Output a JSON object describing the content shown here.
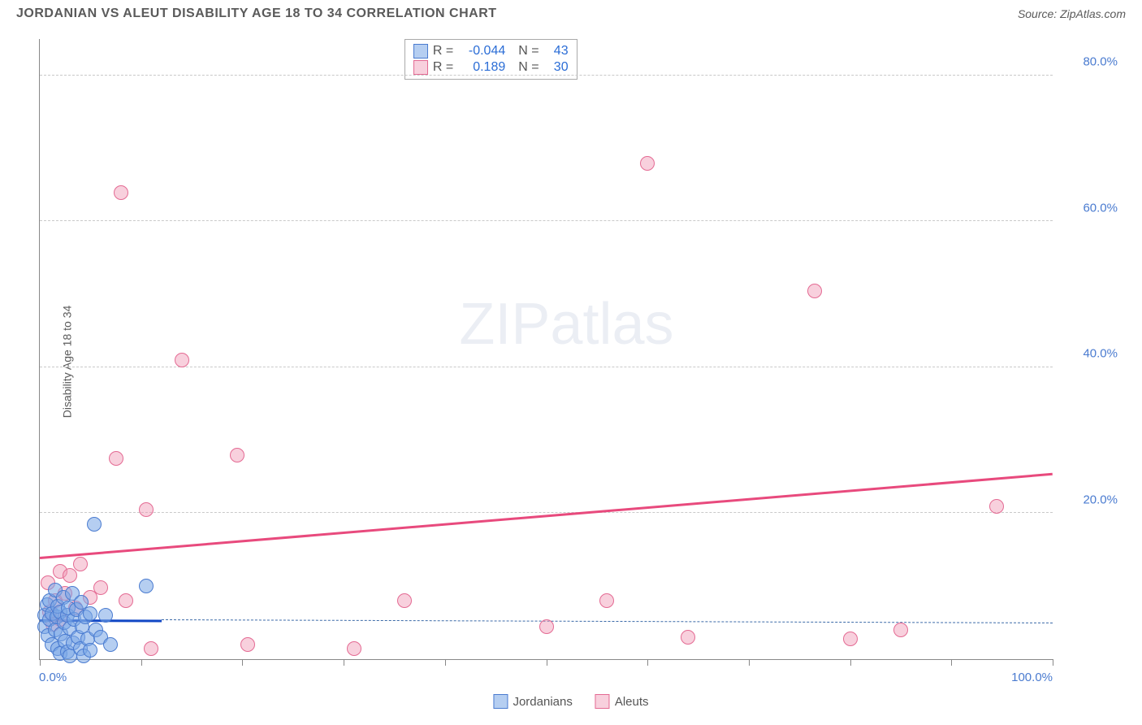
{
  "header": {
    "title": "JORDANIAN VS ALEUT DISABILITY AGE 18 TO 34 CORRELATION CHART",
    "source": "Source: ZipAtlas.com"
  },
  "chart": {
    "type": "scatter",
    "ylabel": "Disability Age 18 to 34",
    "watermark": "ZIPatlas",
    "background_color": "#ffffff",
    "grid_color": "#c9c9c9",
    "axis_color": "#888888",
    "text_color": "#5a5a5a",
    "value_color": "#4a7bd0",
    "xlim": [
      0,
      100
    ],
    "ylim": [
      0,
      85
    ],
    "x_ticks": [
      0,
      10,
      20,
      30,
      40,
      50,
      60,
      70,
      80,
      90,
      100
    ],
    "x_tick_labels": {
      "0": "0.0%",
      "100": "100.0%"
    },
    "y_gridlines": [
      20,
      40,
      60,
      80
    ],
    "y_tick_labels": {
      "20": "20.0%",
      "40": "40.0%",
      "60": "60.0%",
      "80": "80.0%"
    },
    "series": [
      {
        "name": "Jordanians",
        "fill_color": "rgba(120,165,230,0.55)",
        "stroke_color": "#4a7bd0",
        "marker_radius": 9,
        "stats": {
          "R": "-0.044",
          "N": "43"
        },
        "trend": {
          "y_at_x0": 5.5,
          "y_at_x100": 5.0,
          "color": "#1147c5",
          "width": 3,
          "solid_until_x": 12,
          "dash_color": "#3b6aa8"
        },
        "points": [
          {
            "x": 0.5,
            "y": 6
          },
          {
            "x": 0.5,
            "y": 4.5
          },
          {
            "x": 0.7,
            "y": 7.5
          },
          {
            "x": 0.8,
            "y": 3.2
          },
          {
            "x": 1.0,
            "y": 5.5
          },
          {
            "x": 1.0,
            "y": 8.0
          },
          {
            "x": 1.2,
            "y": 2.0
          },
          {
            "x": 1.2,
            "y": 6.2
          },
          {
            "x": 1.5,
            "y": 9.5
          },
          {
            "x": 1.5,
            "y": 4.0
          },
          {
            "x": 1.7,
            "y": 5.8
          },
          {
            "x": 1.8,
            "y": 7.2
          },
          {
            "x": 1.8,
            "y": 1.4
          },
          {
            "x": 2.0,
            "y": 0.8
          },
          {
            "x": 2.0,
            "y": 6.5
          },
          {
            "x": 2.1,
            "y": 3.5
          },
          {
            "x": 2.3,
            "y": 8.5
          },
          {
            "x": 2.4,
            "y": 5.0
          },
          {
            "x": 2.5,
            "y": 2.5
          },
          {
            "x": 2.7,
            "y": 6.0
          },
          {
            "x": 2.7,
            "y": 1.0
          },
          {
            "x": 2.8,
            "y": 7.0
          },
          {
            "x": 3.0,
            "y": 4.2
          },
          {
            "x": 3.0,
            "y": 0.5
          },
          {
            "x": 3.2,
            "y": 9.0
          },
          {
            "x": 3.3,
            "y": 2.2
          },
          {
            "x": 3.4,
            "y": 5.5
          },
          {
            "x": 3.6,
            "y": 6.8
          },
          {
            "x": 3.8,
            "y": 3.0
          },
          {
            "x": 4.0,
            "y": 1.5
          },
          {
            "x": 4.1,
            "y": 7.8
          },
          {
            "x": 4.2,
            "y": 4.5
          },
          {
            "x": 4.3,
            "y": 0.4
          },
          {
            "x": 4.5,
            "y": 5.8
          },
          {
            "x": 4.7,
            "y": 2.8
          },
          {
            "x": 5.0,
            "y": 6.2
          },
          {
            "x": 5.0,
            "y": 1.2
          },
          {
            "x": 5.4,
            "y": 18.5
          },
          {
            "x": 5.5,
            "y": 4.0
          },
          {
            "x": 6.0,
            "y": 3.0
          },
          {
            "x": 6.5,
            "y": 6.0
          },
          {
            "x": 7.0,
            "y": 2.0
          },
          {
            "x": 10.5,
            "y": 10.0
          }
        ]
      },
      {
        "name": "Aleuts",
        "fill_color": "rgba(240,150,180,0.45)",
        "stroke_color": "#e46a93",
        "marker_radius": 9,
        "stats": {
          "R": "0.189",
          "N": "30"
        },
        "trend": {
          "y_at_x0": 14.0,
          "y_at_x100": 25.5,
          "color": "#e84a7d",
          "width": 2.5
        },
        "points": [
          {
            "x": 0.8,
            "y": 10.5
          },
          {
            "x": 1.5,
            "y": 8.0
          },
          {
            "x": 2.0,
            "y": 12.0
          },
          {
            "x": 2.0,
            "y": 5.5
          },
          {
            "x": 2.5,
            "y": 9.0
          },
          {
            "x": 3.0,
            "y": 11.5
          },
          {
            "x": 3.5,
            "y": 7.0
          },
          {
            "x": 4.0,
            "y": 13.0
          },
          {
            "x": 5.0,
            "y": 8.5
          },
          {
            "x": 6.0,
            "y": 9.8
          },
          {
            "x": 7.5,
            "y": 27.5
          },
          {
            "x": 8.0,
            "y": 64.0
          },
          {
            "x": 8.5,
            "y": 8.0
          },
          {
            "x": 10.5,
            "y": 20.5
          },
          {
            "x": 11.0,
            "y": 1.5
          },
          {
            "x": 14.0,
            "y": 41.0
          },
          {
            "x": 19.5,
            "y": 28.0
          },
          {
            "x": 20.5,
            "y": 2.0
          },
          {
            "x": 31.0,
            "y": 1.5
          },
          {
            "x": 36.0,
            "y": 8.0
          },
          {
            "x": 50.0,
            "y": 4.5
          },
          {
            "x": 56.0,
            "y": 8.0
          },
          {
            "x": 60.0,
            "y": 68.0
          },
          {
            "x": 64.0,
            "y": 3.0
          },
          {
            "x": 76.5,
            "y": 50.5
          },
          {
            "x": 80.0,
            "y": 2.8
          },
          {
            "x": 85.0,
            "y": 4.0
          },
          {
            "x": 94.5,
            "y": 21.0
          },
          {
            "x": 1.0,
            "y": 6.5
          },
          {
            "x": 1.3,
            "y": 4.8
          }
        ]
      }
    ],
    "legend": {
      "items": [
        {
          "label": "Jordanians",
          "fill": "rgba(120,165,230,0.55)",
          "stroke": "#4a7bd0"
        },
        {
          "label": "Aleuts",
          "fill": "rgba(240,150,180,0.45)",
          "stroke": "#e46a93"
        }
      ]
    }
  }
}
